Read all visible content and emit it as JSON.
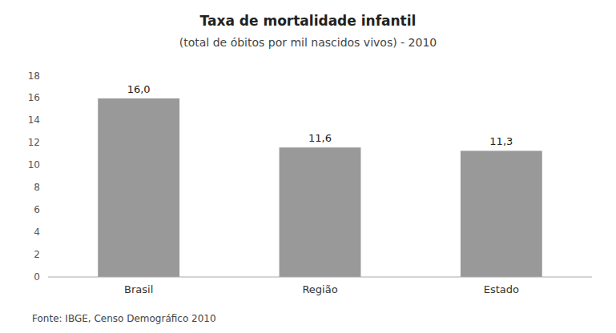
{
  "chart_data": {
    "type": "bar",
    "title": "Taxa de mortalidade infantil",
    "subtitle": "(total de óbitos por mil nascidos vivos) - 2010",
    "annotations": [
      "Fonte: IBGE, Censo Demográfico 2010"
    ],
    "categories": [
      "Brasil",
      "Região",
      "Estado"
    ],
    "values": [
      16.0,
      11.6,
      11.3
    ],
    "value_labels": [
      "16,0",
      "11,6",
      "11,3"
    ],
    "data_labels": true,
    "color": "#999999",
    "ylim": [
      0,
      18
    ],
    "yticks": [
      0,
      2,
      4,
      6,
      8,
      10,
      12,
      14,
      16,
      18
    ],
    "grid": false
  }
}
